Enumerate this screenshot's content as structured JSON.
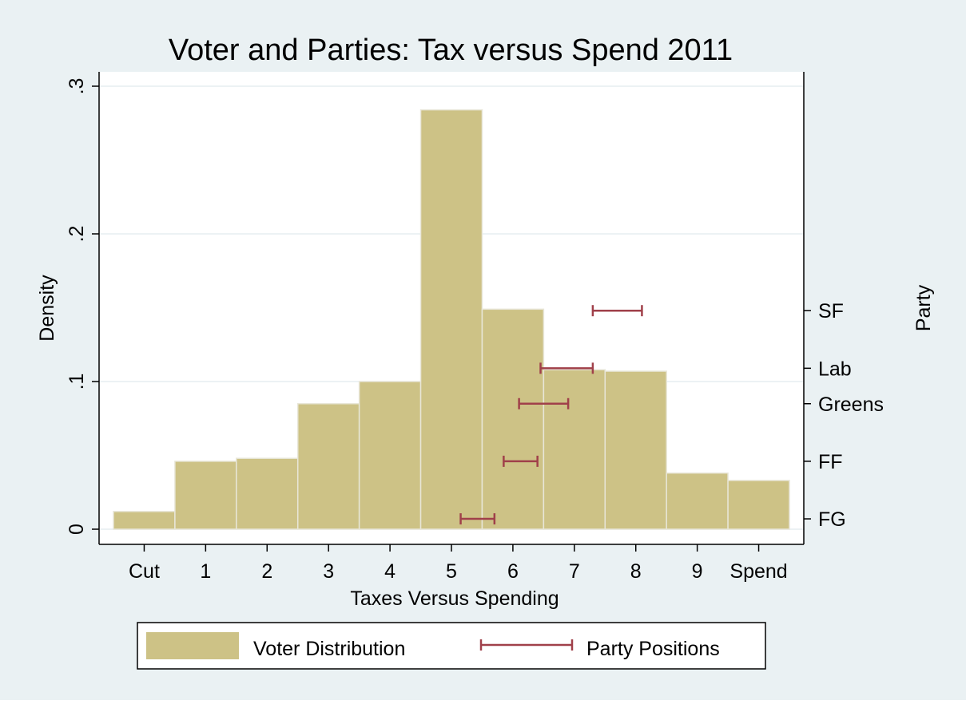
{
  "chart_data": {
    "type": "bar",
    "title": "Voter and Parties: Tax versus Spend 2011",
    "xlabel": "Taxes Versus Spending",
    "ylabel": "Density",
    "right_axis_title": "Party",
    "x_tick_labels": [
      "Cut",
      "1",
      "2",
      "3",
      "4",
      "5",
      "6",
      "7",
      "8",
      "9",
      "Spend"
    ],
    "y_ticks": [
      {
        "value": 0,
        "label": "0"
      },
      {
        "value": 0.1,
        "label": ".1"
      },
      {
        "value": 0.2,
        "label": ".2"
      },
      {
        "value": 0.3,
        "label": ".3"
      }
    ],
    "ylim": [
      0,
      0.3
    ],
    "xlim": [
      -0.5,
      10.5
    ],
    "grid": true,
    "histogram": {
      "name": "Voter Distribution",
      "color": "#cdc286",
      "x": [
        0,
        1,
        2,
        3,
        4,
        5,
        6,
        7,
        8,
        9,
        10
      ],
      "values": [
        0.012,
        0.046,
        0.048,
        0.085,
        0.1,
        0.284,
        0.149,
        0.108,
        0.107,
        0.038,
        0.033
      ]
    },
    "party_positions": {
      "name": "Party Positions",
      "color": "#a0404a",
      "parties": [
        {
          "label": "SF",
          "y": 0.148,
          "low": 7.3,
          "high": 8.1
        },
        {
          "label": "Lab",
          "y": 0.109,
          "low": 6.45,
          "high": 7.3
        },
        {
          "label": "Greens",
          "y": 0.085,
          "low": 6.1,
          "high": 6.9
        },
        {
          "label": "FF",
          "y": 0.046,
          "low": 5.85,
          "high": 6.4
        },
        {
          "label": "FG",
          "y": 0.007,
          "low": 5.15,
          "high": 5.7
        }
      ]
    },
    "legend": {
      "placement": "bottom",
      "entries": [
        "Voter Distribution",
        "Party Positions"
      ]
    },
    "colors": {
      "outer_background": "#eaf1f3",
      "plot_background": "#ffffff",
      "grid": "#e6eef0",
      "bar_edge": "#e8e6d8"
    }
  }
}
